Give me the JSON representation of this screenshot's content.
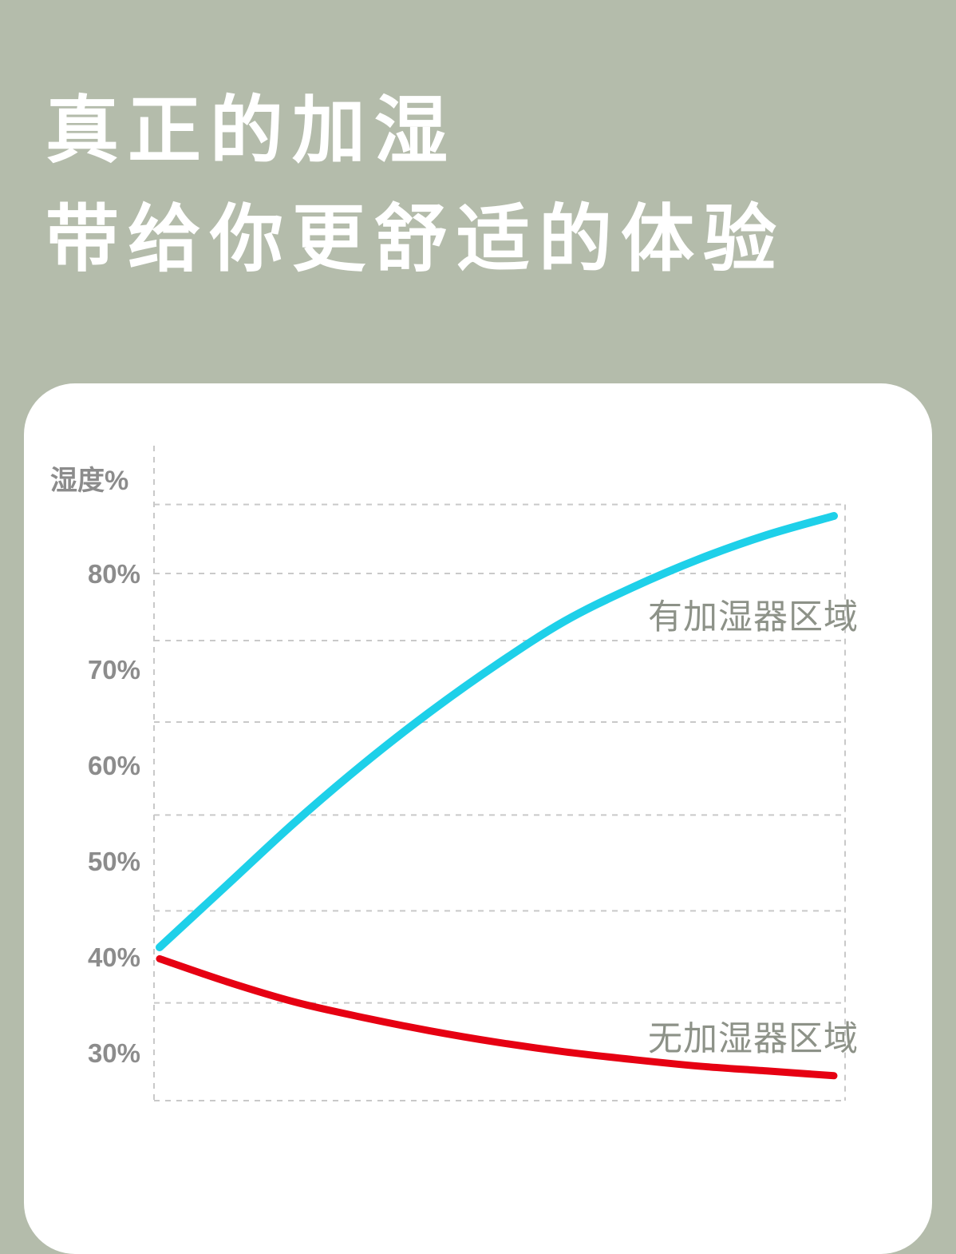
{
  "page": {
    "background_color": "#b4bcab",
    "card_color": "#ffffff"
  },
  "hero": {
    "title_line1": "真正的加湿",
    "title_line2": "带给你更舒适的体验"
  },
  "chart_data": {
    "type": "line",
    "title": "",
    "xlabel": "",
    "ylabel": "湿度%",
    "ylim": [
      25,
      90
    ],
    "grid": true,
    "legend_position": "inline-labels",
    "x": [
      0,
      1,
      2,
      3,
      4,
      5,
      6,
      7,
      8,
      9,
      10
    ],
    "y_ticks": [
      {
        "value": 80,
        "label": "80%"
      },
      {
        "value": 70,
        "label": "70%"
      },
      {
        "value": 60,
        "label": "60%"
      },
      {
        "value": 50,
        "label": "50%"
      },
      {
        "value": 40,
        "label": "40%"
      },
      {
        "value": 30,
        "label": "30%"
      }
    ],
    "gridline_values": [
      87.2,
      80,
      73,
      64.5,
      54.8,
      44.8,
      35.2,
      25
    ],
    "series": [
      {
        "name": "有加湿器区域",
        "color": "#1ed0e9",
        "values": [
          41,
          47.5,
          54,
          60,
          65.5,
          70.5,
          75,
          78.5,
          81.5,
          84,
          86
        ]
      },
      {
        "name": "无加湿器区域",
        "color": "#e60012",
        "values": [
          39.8,
          37.4,
          35.3,
          33.7,
          32.3,
          31.1,
          30.1,
          29.3,
          28.6,
          28.1,
          27.6
        ]
      }
    ]
  }
}
